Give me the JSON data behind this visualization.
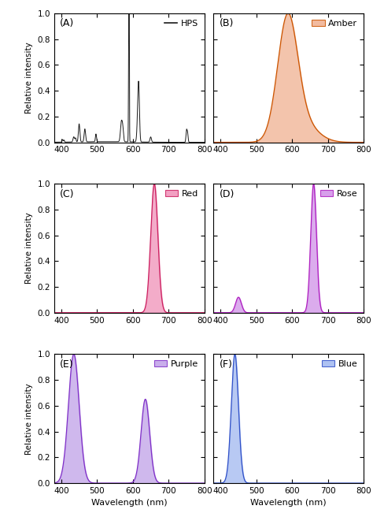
{
  "panels": [
    "A",
    "B",
    "C",
    "D",
    "E",
    "F"
  ],
  "labels": [
    "HPS",
    "Amber",
    "Red",
    "Rose",
    "Purple",
    "Blue"
  ],
  "xlim": [
    380,
    800
  ],
  "ylim": [
    0.0,
    1.0
  ],
  "xlabel": "Wavelength (nm)",
  "ylabel": "Relative intensity",
  "xticks": [
    400,
    500,
    600,
    700,
    800
  ],
  "yticks": [
    0.0,
    0.2,
    0.4,
    0.6,
    0.8,
    1.0
  ],
  "colors": {
    "HPS": "#1a1a1a",
    "Amber": "#cc5500",
    "Red": "#cc2060",
    "Rose": "#b020c0",
    "Purple": "#8030c8",
    "Blue": "#3050c8"
  },
  "fill_colors": {
    "Amber": "#f0b090",
    "Red": "#f090b8",
    "Rose": "#d090e8",
    "Purple": "#c0a0e8",
    "Blue": "#a0b8f0"
  }
}
